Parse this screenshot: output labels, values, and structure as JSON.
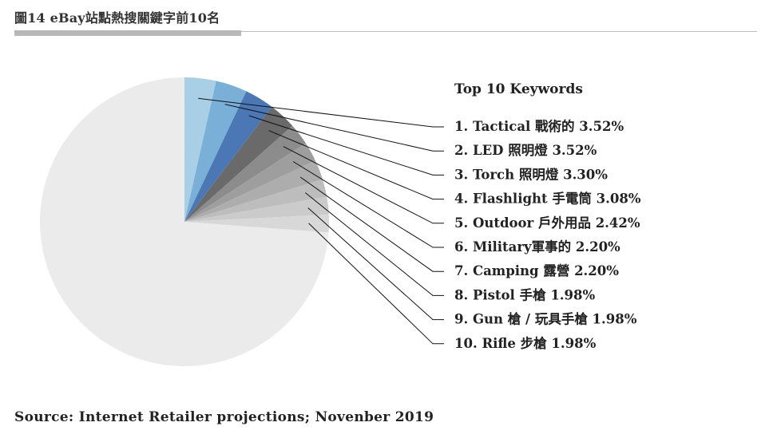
{
  "figure": {
    "title": "圖14 eBay站點熱搜關鍵字前10名",
    "source": "Source: Internet Retailer projections; Novenber 2019"
  },
  "chart_data": {
    "type": "pie",
    "legend_title": "Top 10 Keywords",
    "slices": [
      {
        "label": "1. Tactical 戰術的 3.52%",
        "value": 3.52,
        "color": "#a8cfe6"
      },
      {
        "label": "2. LED 照明燈 3.52%",
        "value": 3.52,
        "color": "#7aafd8"
      },
      {
        "label": "3. Torch 照明燈 3.30%",
        "value": 3.3,
        "color": "#4b78b4"
      },
      {
        "label": "4. Flashlight 手電筒 3.08%",
        "value": 3.08,
        "color": "#6a6a6a"
      },
      {
        "label": "5. Outdoor 戶外用品 2.42%",
        "value": 2.42,
        "color": "#8c8c8c"
      },
      {
        "label": "6. Military軍事的 2.20%",
        "value": 2.2,
        "color": "#9e9e9e"
      },
      {
        "label": "7. Camping 露營 2.20%",
        "value": 2.2,
        "color": "#adadad"
      },
      {
        "label": "8. Pistol 手槍 1.98%",
        "value": 1.98,
        "color": "#bdbdbd"
      },
      {
        "label": "9. Gun 槍 / 玩具手槍 1.98%",
        "value": 1.98,
        "color": "#cbcbcb"
      },
      {
        "label": "10. Rifle 步槍 1.98%",
        "value": 1.98,
        "color": "#d8d8d8"
      }
    ],
    "others": {
      "value": 73.82,
      "color": "#ebebeb"
    },
    "legend_placement": "right",
    "leader_lines": true
  }
}
